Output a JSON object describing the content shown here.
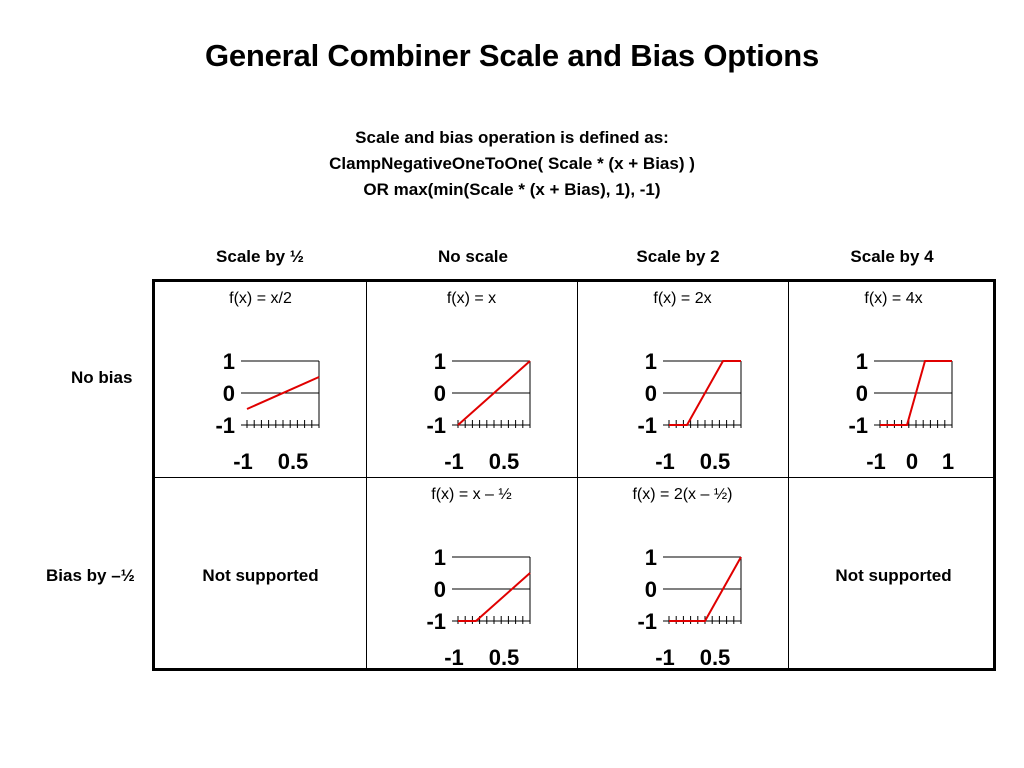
{
  "title": "General Combiner Scale and Bias Options",
  "definition": {
    "line1": "Scale and bias operation is defined as:",
    "line2": "ClampNegativeOneToOne( Scale * (x + Bias) )",
    "line3": "OR max(min(Scale * (x + Bias), 1), -1)"
  },
  "columns": [
    "Scale by ½",
    "No scale",
    "Scale by 2",
    "Scale by 4"
  ],
  "rows": [
    "No bias",
    "Bias by –½"
  ],
  "cells": {
    "r0c0": {
      "formula": "f(x) = x/2"
    },
    "r0c1": {
      "formula": "f(x) = x"
    },
    "r0c2": {
      "formula": "f(x) = 2x"
    },
    "r0c3": {
      "formula": "f(x) = 4x"
    },
    "r1c0": {
      "text": "Not supported"
    },
    "r1c1": {
      "formula": "f(x) = x – ½"
    },
    "r1c2": {
      "formula": "f(x) = 2(x – ½)"
    },
    "r1c3": {
      "text": "Not supported"
    }
  },
  "line_color": "#e00000",
  "chart_data": [
    {
      "type": "line",
      "cell": "r0c0",
      "scale": 0.5,
      "bias": 0,
      "x": [
        -1,
        1
      ],
      "y": [
        -0.5,
        0.5
      ],
      "xlim": [
        -1,
        1
      ],
      "ylim": [
        -1,
        1
      ],
      "ytick_labels": [
        "1",
        "0",
        "-1"
      ],
      "xtick_labels": [
        "-1",
        "0.5"
      ]
    },
    {
      "type": "line",
      "cell": "r0c1",
      "scale": 1,
      "bias": 0,
      "x": [
        -1,
        1
      ],
      "y": [
        -1,
        1
      ],
      "xlim": [
        -1,
        1
      ],
      "ylim": [
        -1,
        1
      ],
      "ytick_labels": [
        "1",
        "0",
        "-1"
      ],
      "xtick_labels": [
        "-1",
        "0.5"
      ]
    },
    {
      "type": "line",
      "cell": "r0c2",
      "scale": 2,
      "bias": 0,
      "x": [
        -1,
        -0.5,
        0.5,
        1
      ],
      "y": [
        -1,
        -1,
        1,
        1
      ],
      "xlim": [
        -1,
        1
      ],
      "ylim": [
        -1,
        1
      ],
      "ytick_labels": [
        "1",
        "0",
        "-1"
      ],
      "xtick_labels": [
        "-1",
        "0.5"
      ]
    },
    {
      "type": "line",
      "cell": "r0c3",
      "scale": 4,
      "bias": 0,
      "x": [
        -1,
        -0.25,
        0.25,
        1
      ],
      "y": [
        -1,
        -1,
        1,
        1
      ],
      "xlim": [
        -1,
        1
      ],
      "ylim": [
        -1,
        1
      ],
      "ytick_labels": [
        "1",
        "0",
        "-1"
      ],
      "xtick_labels": [
        "-1",
        "0",
        "1"
      ]
    },
    {
      "type": "line",
      "cell": "r1c1",
      "scale": 1,
      "bias": -0.5,
      "x": [
        -1,
        -0.5,
        1
      ],
      "y": [
        -1,
        -1,
        0.5
      ],
      "xlim": [
        -1,
        1
      ],
      "ylim": [
        -1,
        1
      ],
      "ytick_labels": [
        "1",
        "0",
        "-1"
      ],
      "xtick_labels": [
        "-1",
        "0.5"
      ]
    },
    {
      "type": "line",
      "cell": "r1c2",
      "scale": 2,
      "bias": -0.5,
      "x": [
        -1,
        0,
        1
      ],
      "y": [
        -1,
        -1,
        1
      ],
      "xlim": [
        -1,
        1
      ],
      "ylim": [
        -1,
        1
      ],
      "ytick_labels": [
        "1",
        "0",
        "-1"
      ],
      "xtick_labels": [
        "-1",
        "0.5"
      ]
    }
  ]
}
